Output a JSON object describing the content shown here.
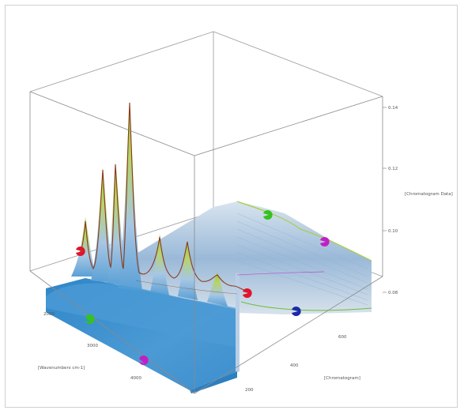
{
  "chart_data": {
    "type": "surface3d",
    "z_axis": {
      "label": "[Chromatogram Data]",
      "ticks": [
        "0.08",
        "0.10",
        "0.12",
        "0.14"
      ]
    },
    "x_axis": {
      "label": "[Wavenumbers cm-1]",
      "ticks": [
        "2000",
        "3000",
        "4000"
      ]
    },
    "y_axis": {
      "label": "[Chromatogram]",
      "ticks": [
        "200",
        "400",
        "600"
      ]
    },
    "grid": false,
    "colors": {
      "surface_low": "#2e86c8",
      "surface_mid": "#9fc6e6",
      "surface_high": "#a9cf3c",
      "trace": "#8b3a1a",
      "box": "#8a8a8a",
      "marker_red": "#e0142b",
      "marker_green": "#35c21f",
      "marker_magenta": "#c21fc4",
      "marker_blue": "#1a2aa8"
    },
    "markers": [
      {
        "color": "red",
        "icon": "red-cursor-marker"
      },
      {
        "color": "green",
        "icon": "green-cursor-marker"
      },
      {
        "color": "magenta",
        "icon": "magenta-cursor-marker"
      },
      {
        "color": "blue",
        "icon": "blue-cursor-marker"
      }
    ]
  }
}
